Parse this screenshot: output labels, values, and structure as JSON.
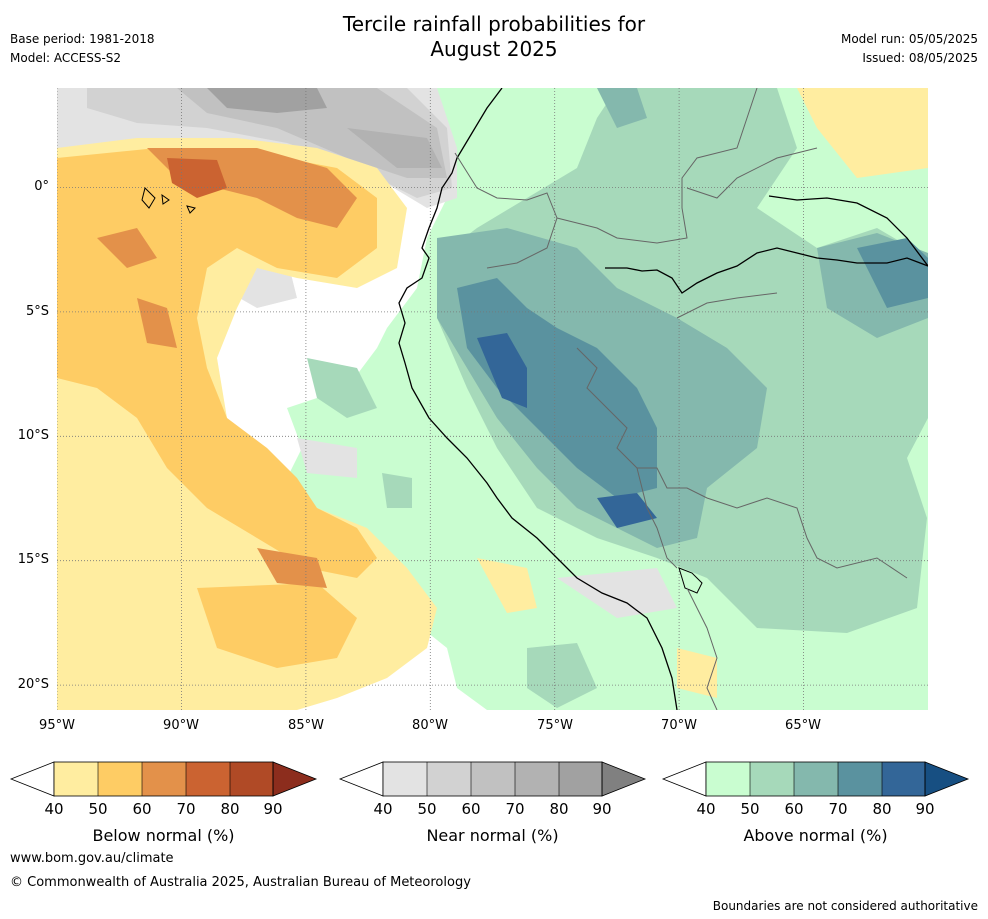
{
  "header": {
    "title_line1": "Tercile rainfall probabilities for",
    "title_line2": "August 2025",
    "base_period": "Base period: 1981-2018",
    "model": "Model: ACCESS-S2",
    "model_run": "Model run: 05/05/2025",
    "issued": "Issued: 08/05/2025"
  },
  "map": {
    "x_ticks": [
      "95°W",
      "90°W",
      "85°W",
      "80°W",
      "75°W",
      "70°W",
      "65°W"
    ],
    "y_ticks": [
      "0°",
      "5°S",
      "10°S",
      "15°S",
      "20°S"
    ],
    "extent": {
      "lon_min": -95,
      "lon_max": -60,
      "lat_min": -21,
      "lat_max": 4
    },
    "gridlines": true
  },
  "colorbars": [
    {
      "label": "Below normal (%)",
      "ticks": [
        "40",
        "50",
        "60",
        "70",
        "80",
        "90"
      ],
      "colors": [
        "#ffeda0",
        "#fecc64",
        "#e3914a",
        "#cb6331",
        "#b04a26",
        "#8c2d1d"
      ]
    },
    {
      "label": "Near normal (%)",
      "ticks": [
        "40",
        "50",
        "60",
        "70",
        "80",
        "90"
      ],
      "colors": [
        "#e3e3e3",
        "#d2d2d2",
        "#c1c1c1",
        "#b2b2b2",
        "#a1a1a1",
        "#808080"
      ]
    },
    {
      "label": "Above normal (%)",
      "ticks": [
        "40",
        "50",
        "60",
        "70",
        "80",
        "90"
      ],
      "colors": [
        "#c9fdd0",
        "#a6d9ba",
        "#84b8ad",
        "#5a929f",
        "#336698",
        "#174f82"
      ]
    }
  ],
  "footer": {
    "url": "www.bom.gov.au/climate",
    "copyright": "© Commonwealth of Australia 2025, Australian Bureau of Meteorology",
    "disclaimer": "Boundaries are not considered authoritative"
  }
}
